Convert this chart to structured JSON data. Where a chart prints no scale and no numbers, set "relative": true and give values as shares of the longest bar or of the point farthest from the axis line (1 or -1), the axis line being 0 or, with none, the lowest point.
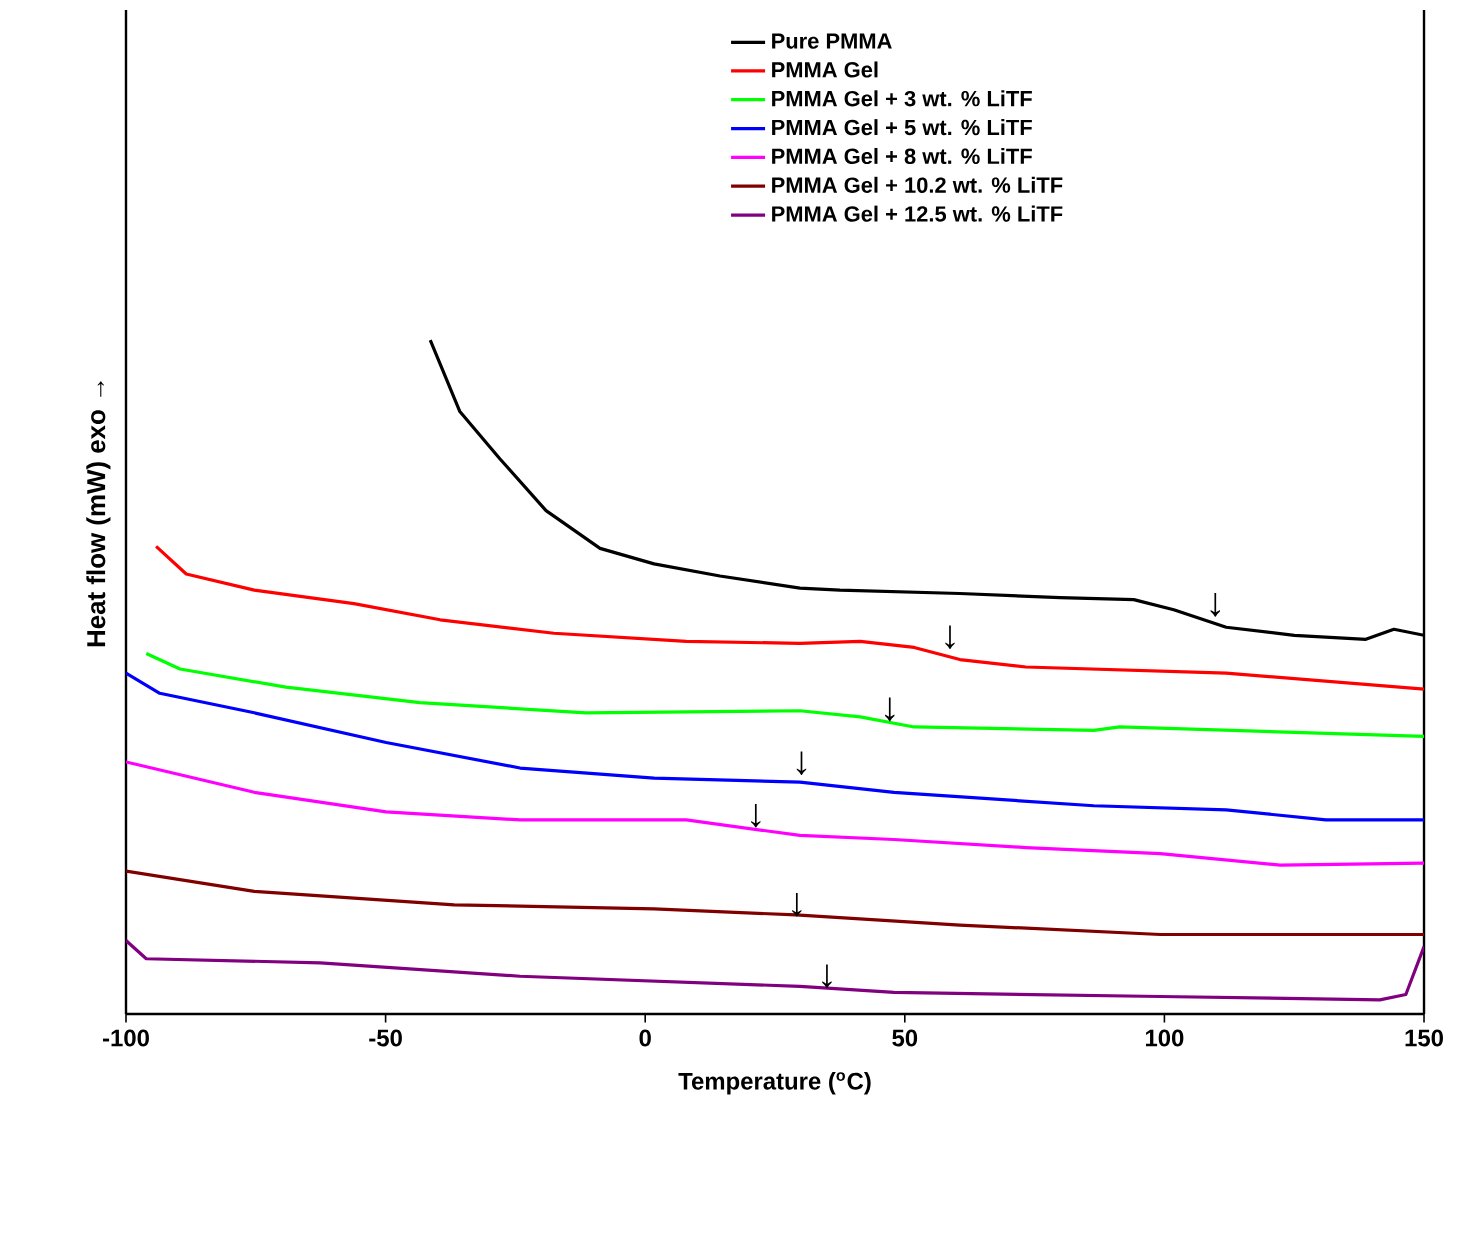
{
  "chart_data": {
    "type": "line",
    "relative": true,
    "xlabel": "Temperature ($^{o}$C)",
    "ylabel": "Heat flow (mW) exo →",
    "xlim": [
      -100,
      150
    ],
    "xticks": [
      -100,
      -50,
      0,
      50,
      100,
      150
    ],
    "legend": "top right",
    "grid": false,
    "marker": "none",
    "line_style": "solid",
    "series": [
      {
        "name": "Pure PMMA",
        "color": "#000000",
        "x": [
          -41.4,
          -35.7,
          -28,
          -19.1,
          -8.7,
          1.7,
          14.4,
          29.8,
          37.5,
          60.6,
          79.9,
          94.1,
          101.8,
          111.9,
          125,
          138.8,
          144.2,
          150
        ],
        "values": [
          1.0,
          0.894,
          0.824,
          0.747,
          0.691,
          0.668,
          0.65,
          0.632,
          0.629,
          0.624,
          0.618,
          0.615,
          0.6,
          0.574,
          0.562,
          0.556,
          0.571,
          0.562
        ]
      },
      {
        "name": "PMMA Gel",
        "color": "#ff0000",
        "x": [
          -94.2,
          -88.4,
          -75.3,
          -56.1,
          -39.5,
          -17.6,
          7.9,
          29.8,
          41.4,
          51.8,
          60.6,
          73.3,
          111.9,
          150
        ],
        "values": [
          0.694,
          0.653,
          0.629,
          0.609,
          0.585,
          0.565,
          0.553,
          0.55,
          0.553,
          0.544,
          0.526,
          0.515,
          0.506,
          0.482
        ]
      },
      {
        "name": "PMMA Gel + 3 wt. %  LiTF",
        "color": "#00ff00",
        "x": [
          -96.1,
          -89.6,
          -69.2,
          -43.4,
          -11.4,
          29.8,
          41.4,
          51.8,
          86.4,
          91.4,
          150
        ],
        "values": [
          0.535,
          0.512,
          0.485,
          0.462,
          0.447,
          0.45,
          0.441,
          0.426,
          0.421,
          0.426,
          0.412
        ]
      },
      {
        "name": "PMMA Gel + 5 wt. %  LiTF",
        "color": "#0000ff",
        "x": [
          -100,
          -93.5,
          -75.3,
          -49.9,
          -24.1,
          1.7,
          29.8,
          47.9,
          86.4,
          111.9,
          131.1,
          150
        ],
        "values": [
          0.506,
          0.476,
          0.447,
          0.403,
          0.365,
          0.35,
          0.344,
          0.329,
          0.309,
          0.303,
          0.288,
          0.288
        ]
      },
      {
        "name": "PMMA Gel + 8  wt. %  LiTF",
        "color": "#ff00ff",
        "x": [
          -100,
          -75.3,
          -49.9,
          -24.1,
          7.9,
          29.8,
          47.9,
          73.3,
          99.2,
          122.3,
          150
        ],
        "values": [
          0.374,
          0.329,
          0.3,
          0.288,
          0.288,
          0.265,
          0.259,
          0.247,
          0.238,
          0.221,
          0.224
        ]
      },
      {
        "name": "PMMA Gel + 10.2 wt. %  LiTF",
        "color": "#800000",
        "x": [
          -100,
          -75.3,
          -36.8,
          1.7,
          29,
          60.6,
          99.2,
          150
        ],
        "values": [
          0.212,
          0.182,
          0.162,
          0.156,
          0.147,
          0.132,
          0.118,
          0.118
        ]
      },
      {
        "name": "PMMA Gel + 12.5 wt. %  LiTF",
        "color": "#800080",
        "x": [
          -100,
          -96.1,
          -62.6,
          -24.1,
          29.8,
          47.9,
          99.2,
          141.5,
          146.5,
          150
        ],
        "values": [
          0.109,
          0.082,
          0.076,
          0.056,
          0.041,
          0.032,
          0.026,
          0.021,
          0.029,
          0.1
        ]
      }
    ],
    "annotations": [
      {
        "text": "↓",
        "x": 109.8,
        "y": 0.589
      },
      {
        "text": "↓",
        "x": 58.7,
        "y": 0.541
      },
      {
        "text": "↓",
        "x": 47.1,
        "y": 0.434
      },
      {
        "text": "↓",
        "x": 30.1,
        "y": 0.354
      },
      {
        "text": "↓",
        "x": 21.3,
        "y": 0.276
      },
      {
        "text": "↓",
        "x": 29.2,
        "y": 0.144
      },
      {
        "text": "↓",
        "x": 35,
        "y": 0.038
      }
    ]
  }
}
